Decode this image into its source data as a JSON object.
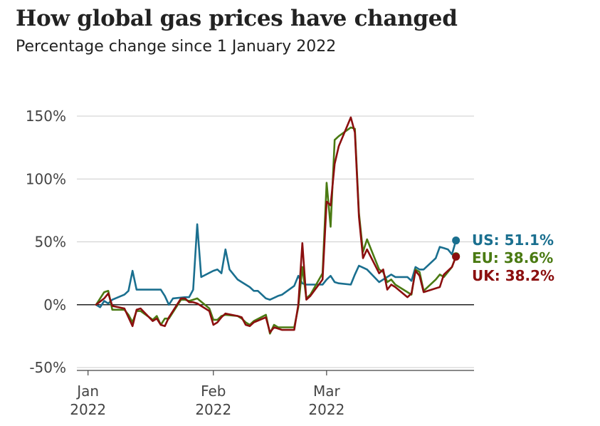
{
  "header": {
    "title": "How global gas prices have changed",
    "subtitle": "Percentage change since 1 January 2022"
  },
  "chart_data": {
    "type": "line",
    "title": "How global gas prices have changed",
    "subtitle": "Percentage change since 1 January 2022",
    "xlabel": "",
    "ylabel": "",
    "ylim": [
      -50,
      150
    ],
    "yticks": [
      -50,
      0,
      50,
      100,
      150
    ],
    "ytick_labels": [
      "-50%",
      "0%",
      "50%",
      "100%",
      "150%"
    ],
    "xlim": [
      "2021-12-31",
      "2022-04-04"
    ],
    "xticks": [
      {
        "date": "2022-01-01",
        "month": "Jan",
        "year": "2022"
      },
      {
        "date": "2022-02-01",
        "month": "Feb",
        "year": "2022"
      },
      {
        "date": "2022-03-01",
        "month": "Mar",
        "year": "2022"
      }
    ],
    "grid": true,
    "legend": "end-labels-right",
    "series": [
      {
        "name": "US",
        "end_label": "US: 51.1%",
        "color": "#1a6f8f",
        "points": [
          [
            "2022-01-03",
            0
          ],
          [
            "2022-01-04",
            -2
          ],
          [
            "2022-01-05",
            3
          ],
          [
            "2022-01-06",
            1
          ],
          [
            "2022-01-07",
            4
          ],
          [
            "2022-01-10",
            8
          ],
          [
            "2022-01-11",
            11
          ],
          [
            "2022-01-12",
            27
          ],
          [
            "2022-01-13",
            12
          ],
          [
            "2022-01-14",
            12
          ],
          [
            "2022-01-18",
            12
          ],
          [
            "2022-01-19",
            12
          ],
          [
            "2022-01-20",
            7
          ],
          [
            "2022-01-21",
            0
          ],
          [
            "2022-01-22",
            5
          ],
          [
            "2022-01-25",
            6
          ],
          [
            "2022-01-26",
            6
          ],
          [
            "2022-01-27",
            12
          ],
          [
            "2022-01-28",
            64
          ],
          [
            "2022-01-29",
            22
          ],
          [
            "2022-02-01",
            27
          ],
          [
            "2022-02-02",
            28
          ],
          [
            "2022-02-03",
            25
          ],
          [
            "2022-02-04",
            44
          ],
          [
            "2022-02-05",
            28
          ],
          [
            "2022-02-07",
            20
          ],
          [
            "2022-02-08",
            18
          ],
          [
            "2022-02-10",
            14
          ],
          [
            "2022-02-11",
            11
          ],
          [
            "2022-02-12",
            11
          ],
          [
            "2022-02-14",
            5
          ],
          [
            "2022-02-15",
            4
          ],
          [
            "2022-02-17",
            7
          ],
          [
            "2022-02-18",
            8
          ],
          [
            "2022-02-21",
            15
          ],
          [
            "2022-02-22",
            23
          ],
          [
            "2022-02-23",
            17
          ],
          [
            "2022-02-24",
            16
          ],
          [
            "2022-02-25",
            16
          ],
          [
            "2022-02-28",
            16
          ],
          [
            "2022-03-01",
            20
          ],
          [
            "2022-03-02",
            23
          ],
          [
            "2022-03-03",
            18
          ],
          [
            "2022-03-04",
            17
          ],
          [
            "2022-03-07",
            16
          ],
          [
            "2022-03-08",
            24
          ],
          [
            "2022-03-09",
            31
          ],
          [
            "2022-03-11",
            28
          ],
          [
            "2022-03-14",
            18
          ],
          [
            "2022-03-15",
            20
          ],
          [
            "2022-03-17",
            24
          ],
          [
            "2022-03-18",
            22
          ],
          [
            "2022-03-21",
            22
          ],
          [
            "2022-03-22",
            19
          ],
          [
            "2022-03-23",
            30
          ],
          [
            "2022-03-24",
            28
          ],
          [
            "2022-03-25",
            28
          ],
          [
            "2022-03-28",
            37
          ],
          [
            "2022-03-29",
            46
          ],
          [
            "2022-03-30",
            45
          ],
          [
            "2022-03-31",
            44
          ],
          [
            "2022-04-01",
            40
          ],
          [
            "2022-04-02",
            51.1
          ]
        ]
      },
      {
        "name": "EU",
        "end_label": "EU: 38.6%",
        "color": "#4a7a12",
        "points": [
          [
            "2022-01-03",
            0
          ],
          [
            "2022-01-05",
            10
          ],
          [
            "2022-01-06",
            11
          ],
          [
            "2022-01-07",
            -4
          ],
          [
            "2022-01-10",
            -4
          ],
          [
            "2022-01-11",
            -8
          ],
          [
            "2022-01-12",
            -14
          ],
          [
            "2022-01-13",
            -5
          ],
          [
            "2022-01-14",
            -5
          ],
          [
            "2022-01-17",
            -12
          ],
          [
            "2022-01-18",
            -9
          ],
          [
            "2022-01-19",
            -16
          ],
          [
            "2022-01-20",
            -11
          ],
          [
            "2022-01-21",
            -11
          ],
          [
            "2022-01-24",
            4
          ],
          [
            "2022-01-25",
            4
          ],
          [
            "2022-01-26",
            3
          ],
          [
            "2022-01-27",
            4
          ],
          [
            "2022-01-28",
            5
          ],
          [
            "2022-01-31",
            -3
          ],
          [
            "2022-02-01",
            -12
          ],
          [
            "2022-02-02",
            -12
          ],
          [
            "2022-02-03",
            -9
          ],
          [
            "2022-02-04",
            -8
          ],
          [
            "2022-02-07",
            -9
          ],
          [
            "2022-02-08",
            -11
          ],
          [
            "2022-02-09",
            -14
          ],
          [
            "2022-02-10",
            -16
          ],
          [
            "2022-02-11",
            -13
          ],
          [
            "2022-02-14",
            -8
          ],
          [
            "2022-02-15",
            -23
          ],
          [
            "2022-02-16",
            -16
          ],
          [
            "2022-02-17",
            -18
          ],
          [
            "2022-02-18",
            -18
          ],
          [
            "2022-02-21",
            -18
          ],
          [
            "2022-02-22",
            -2
          ],
          [
            "2022-02-23",
            30
          ],
          [
            "2022-02-24",
            5
          ],
          [
            "2022-02-25",
            8
          ],
          [
            "2022-02-28",
            25
          ],
          [
            "2022-03-01",
            97
          ],
          [
            "2022-03-02",
            62
          ],
          [
            "2022-03-03",
            131
          ],
          [
            "2022-03-04",
            134
          ],
          [
            "2022-03-07",
            141
          ],
          [
            "2022-03-08",
            140
          ],
          [
            "2022-03-09",
            73
          ],
          [
            "2022-03-10",
            42
          ],
          [
            "2022-03-11",
            52
          ],
          [
            "2022-03-14",
            28
          ],
          [
            "2022-03-15",
            26
          ],
          [
            "2022-03-16",
            18
          ],
          [
            "2022-03-17",
            20
          ],
          [
            "2022-03-18",
            16
          ],
          [
            "2022-03-21",
            10
          ],
          [
            "2022-03-22",
            8
          ],
          [
            "2022-03-23",
            28
          ],
          [
            "2022-03-24",
            26
          ],
          [
            "2022-03-25",
            11
          ],
          [
            "2022-03-28",
            20
          ],
          [
            "2022-03-29",
            24
          ],
          [
            "2022-03-30",
            22
          ],
          [
            "2022-04-01",
            30
          ],
          [
            "2022-04-02",
            38.6
          ]
        ]
      },
      {
        "name": "UK",
        "end_label": "UK: 38.2%",
        "color": "#8b0f0f",
        "points": [
          [
            "2022-01-03",
            0
          ],
          [
            "2022-01-05",
            5
          ],
          [
            "2022-01-06",
            9
          ],
          [
            "2022-01-07",
            -1
          ],
          [
            "2022-01-10",
            -3
          ],
          [
            "2022-01-11",
            -10
          ],
          [
            "2022-01-12",
            -17
          ],
          [
            "2022-01-13",
            -4
          ],
          [
            "2022-01-14",
            -3
          ],
          [
            "2022-01-17",
            -13
          ],
          [
            "2022-01-18",
            -11
          ],
          [
            "2022-01-19",
            -16
          ],
          [
            "2022-01-20",
            -17
          ],
          [
            "2022-01-21",
            -10
          ],
          [
            "2022-01-24",
            5
          ],
          [
            "2022-01-25",
            5
          ],
          [
            "2022-01-26",
            2
          ],
          [
            "2022-01-27",
            2
          ],
          [
            "2022-01-28",
            1
          ],
          [
            "2022-01-31",
            -5
          ],
          [
            "2022-02-01",
            -16
          ],
          [
            "2022-02-02",
            -14
          ],
          [
            "2022-02-03",
            -10
          ],
          [
            "2022-02-04",
            -7
          ],
          [
            "2022-02-07",
            -9
          ],
          [
            "2022-02-08",
            -10
          ],
          [
            "2022-02-09",
            -16
          ],
          [
            "2022-02-10",
            -17
          ],
          [
            "2022-02-11",
            -14
          ],
          [
            "2022-02-14",
            -10
          ],
          [
            "2022-02-15",
            -22
          ],
          [
            "2022-02-16",
            -18
          ],
          [
            "2022-02-17",
            -19
          ],
          [
            "2022-02-18",
            -20
          ],
          [
            "2022-02-21",
            -20
          ],
          [
            "2022-02-22",
            0
          ],
          [
            "2022-02-23",
            49
          ],
          [
            "2022-02-24",
            4
          ],
          [
            "2022-02-25",
            7
          ],
          [
            "2022-02-28",
            20
          ],
          [
            "2022-03-01",
            82
          ],
          [
            "2022-03-02",
            79
          ],
          [
            "2022-03-03",
            112
          ],
          [
            "2022-03-04",
            126
          ],
          [
            "2022-03-07",
            149
          ],
          [
            "2022-03-08",
            137
          ],
          [
            "2022-03-09",
            70
          ],
          [
            "2022-03-10",
            37
          ],
          [
            "2022-03-11",
            44
          ],
          [
            "2022-03-14",
            25
          ],
          [
            "2022-03-15",
            28
          ],
          [
            "2022-03-16",
            12
          ],
          [
            "2022-03-17",
            16
          ],
          [
            "2022-03-18",
            14
          ],
          [
            "2022-03-21",
            6
          ],
          [
            "2022-03-22",
            9
          ],
          [
            "2022-03-23",
            27
          ],
          [
            "2022-03-24",
            23
          ],
          [
            "2022-03-25",
            10
          ],
          [
            "2022-03-28",
            13
          ],
          [
            "2022-03-29",
            14
          ],
          [
            "2022-03-30",
            24
          ],
          [
            "2022-04-01",
            30
          ],
          [
            "2022-04-02",
            38.2
          ]
        ]
      }
    ]
  }
}
